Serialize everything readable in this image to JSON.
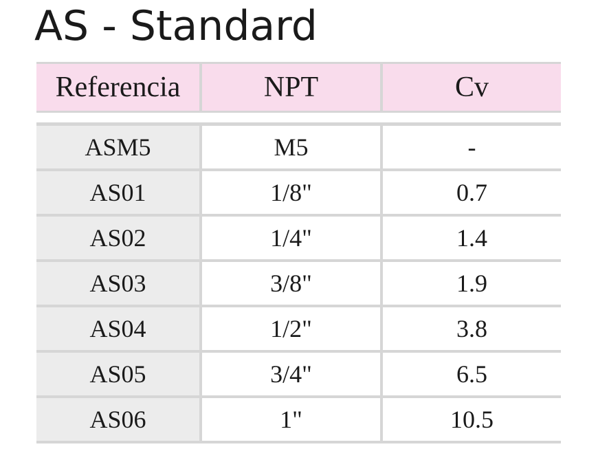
{
  "title": "AS - Standard",
  "table": {
    "headers": [
      "Referencia",
      "NPT",
      "Cv"
    ],
    "rows": [
      [
        "ASM5",
        "M5",
        "-"
      ],
      [
        "AS01",
        "1/8\"",
        "0.7"
      ],
      [
        "AS02",
        "1/4\"",
        "1.4"
      ],
      [
        "AS03",
        "3/8\"",
        "1.9"
      ],
      [
        "AS04",
        "1/2\"",
        "3.8"
      ],
      [
        "AS05",
        "3/4\"",
        "6.5"
      ],
      [
        "AS06",
        "1\"",
        "10.5"
      ]
    ]
  },
  "colors": {
    "header_bg": "#f9dcec",
    "first_column_bg": "#ececec",
    "border": "#d6d6d6"
  }
}
